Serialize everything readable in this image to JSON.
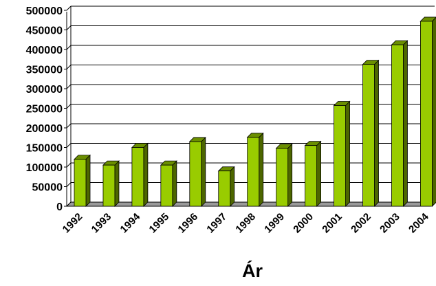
{
  "chart_data": {
    "type": "bar",
    "title": "",
    "xlabel": "Ár",
    "ylabel": "",
    "categories": [
      "1992",
      "1993",
      "1994",
      "1995",
      "1996",
      "1997",
      "1998",
      "1999",
      "2000",
      "2001",
      "2002",
      "2003",
      "2004"
    ],
    "values": [
      120000,
      105000,
      150000,
      105000,
      165000,
      90000,
      176000,
      148000,
      155000,
      257000,
      362000,
      412000,
      472000
    ],
    "ylim": [
      0,
      500000
    ],
    "yticks": [
      "0",
      "50000",
      "100000",
      "150000",
      "200000",
      "250000",
      "300000",
      "350000",
      "400000",
      "450000",
      "500000"
    ],
    "grid": true,
    "legend": "none",
    "colors": {
      "bar_front": "#99cc00",
      "bar_side": "#4d6600",
      "bar_top": "#6b8f00",
      "grid": "#000000"
    }
  }
}
